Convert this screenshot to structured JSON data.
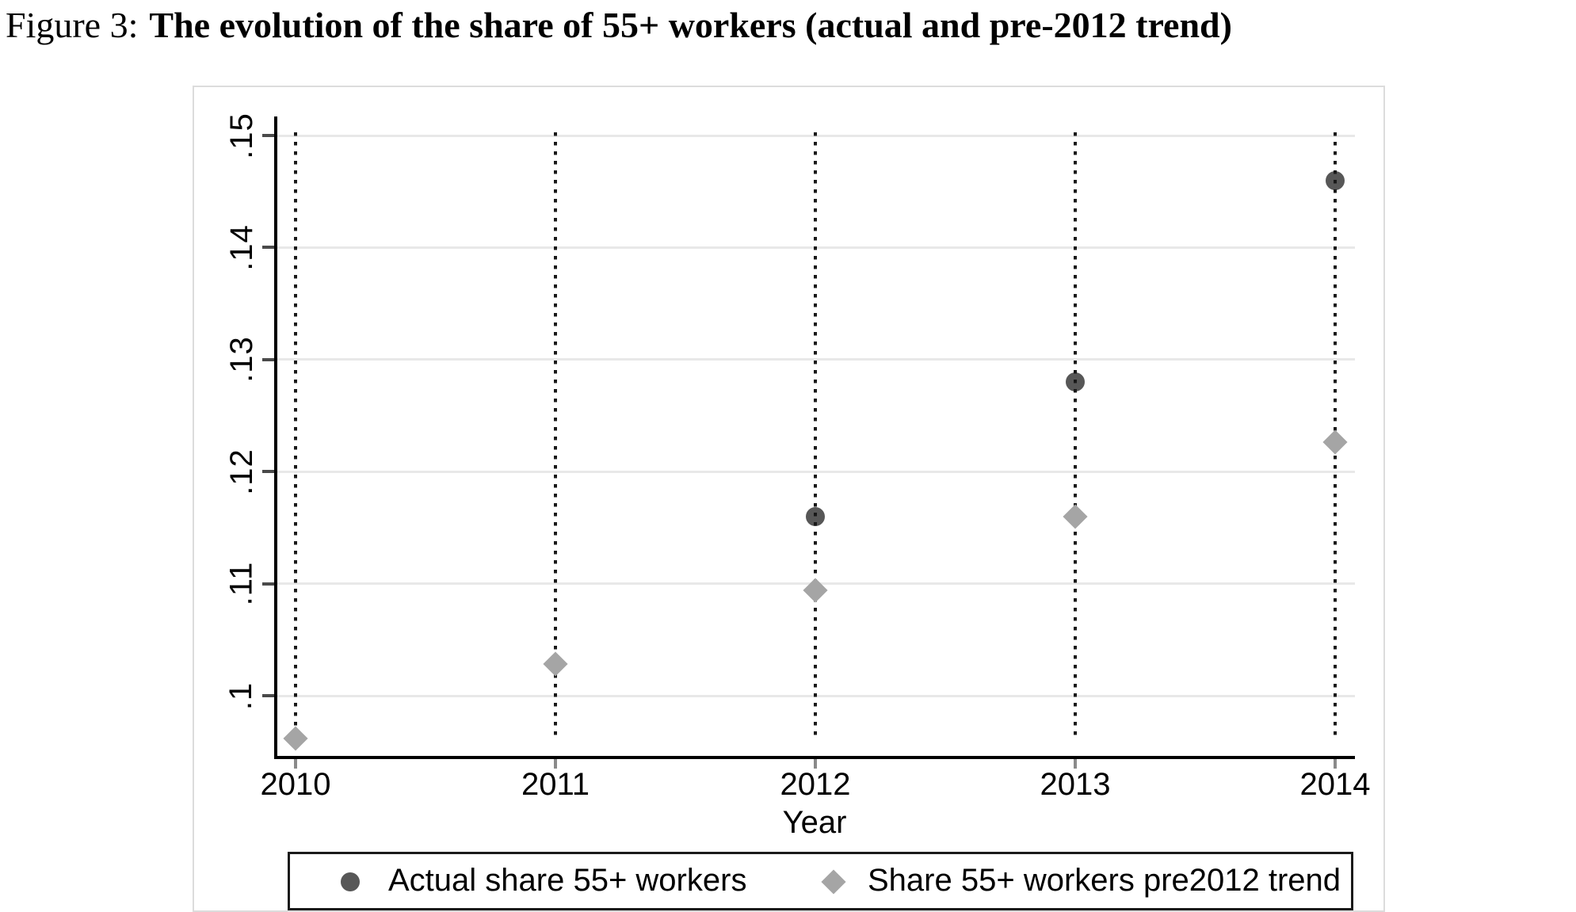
{
  "figure": {
    "label": "Figure 3:",
    "title": "The evolution of the share of 55+ workers (actual and pre-2012 trend)"
  },
  "chart_data": {
    "type": "scatter",
    "title": "Figure 3: The evolution of the share of 55+ workers (actual and pre-2012 trend)",
    "xlabel": "Year",
    "ylabel": "",
    "x_tick_labels": [
      "2010",
      "2011",
      "2012",
      "2013",
      "2014"
    ],
    "x_tick_values": [
      2010,
      2011,
      2012,
      2013,
      2014
    ],
    "y_tick_labels": [
      ".1",
      ".11",
      ".12",
      ".13",
      ".14",
      ".15"
    ],
    "y_tick_values": [
      0.1,
      0.11,
      0.12,
      0.13,
      0.14,
      0.15
    ],
    "ylim": [
      0.0945,
      0.1517
    ],
    "xlim": [
      2009.9,
      2014.2
    ],
    "grid": "horizontal-light-gray",
    "vertical_dotted_lines_at": [
      2010,
      2011,
      2012,
      2013,
      2014
    ],
    "legend_position": "bottom-box",
    "colors": {
      "actual_marker": "#575757",
      "trend_marker": "#a5a5a5",
      "gridline": "#e8e8e8",
      "axis": "#000000",
      "dotted_line": "#191919"
    },
    "series": [
      {
        "name": "Actual share 55+ workers",
        "marker": "circle",
        "color": "#575757",
        "points": [
          {
            "x": 2012,
            "y": 0.116
          },
          {
            "x": 2013,
            "y": 0.128
          },
          {
            "x": 2014,
            "y": 0.146
          }
        ]
      },
      {
        "name": "Share 55+ workers pre2012 trend",
        "marker": "diamond",
        "color": "#a5a5a5",
        "points": [
          {
            "x": 2010,
            "y": 0.0962
          },
          {
            "x": 2011,
            "y": 0.1028
          },
          {
            "x": 2012,
            "y": 0.1094
          },
          {
            "x": 2013,
            "y": 0.116
          },
          {
            "x": 2014,
            "y": 0.1226
          }
        ]
      }
    ]
  }
}
